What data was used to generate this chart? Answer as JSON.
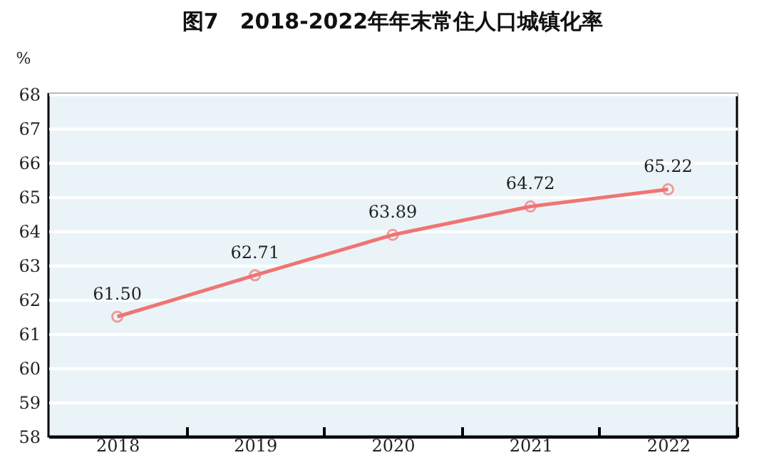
{
  "chart_data": {
    "type": "line",
    "title": "图7　2018-2022年年末常住人口城镇化率",
    "ylabel": "%",
    "categories": [
      "2018",
      "2019",
      "2020",
      "2021",
      "2022"
    ],
    "series": [
      {
        "color": "#f07474",
        "values": [
          61.5,
          62.71,
          63.89,
          64.72,
          65.22
        ],
        "value_labels": [
          "61.50",
          "62.71",
          "63.89",
          "64.72",
          "65.22"
        ]
      }
    ],
    "ylim": [
      58,
      68
    ],
    "yticks": [
      58,
      59,
      60,
      61,
      62,
      63,
      64,
      65,
      66,
      67,
      68
    ],
    "grid": "y",
    "marker": "circle",
    "line_style": "solid",
    "legend": false
  }
}
